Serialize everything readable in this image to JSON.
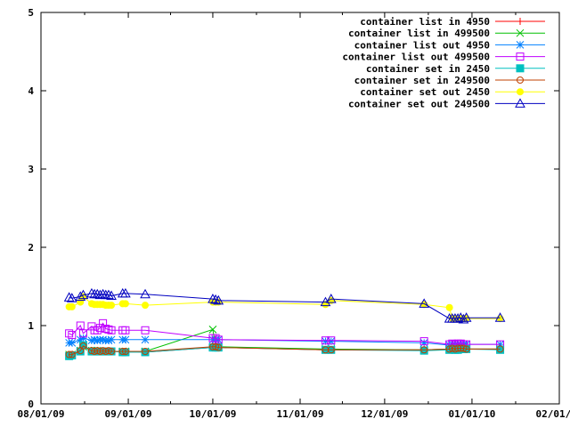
{
  "chart_data": {
    "type": "line",
    "x_type": "date",
    "xlim": [
      "2009-08-01",
      "2010-02-01"
    ],
    "ylim": [
      0,
      5
    ],
    "x_ticks": [
      {
        "date": "2009-08-01",
        "label": "08/01/09"
      },
      {
        "date": "2009-09-01",
        "label": "09/01/09"
      },
      {
        "date": "2009-10-01",
        "label": "10/01/09"
      },
      {
        "date": "2009-11-01",
        "label": "11/01/09"
      },
      {
        "date": "2009-12-01",
        "label": "12/01/09"
      },
      {
        "date": "2010-01-01",
        "label": "01/01/10"
      },
      {
        "date": "2010-02-01",
        "label": "02/01/10"
      }
    ],
    "y_ticks": [
      0,
      1,
      2,
      3,
      4,
      5
    ],
    "legend_position": "top-right",
    "grid": false,
    "x": [
      "2009-08-11",
      "2009-08-12",
      "2009-08-15",
      "2009-08-16",
      "2009-08-19",
      "2009-08-20",
      "2009-08-21",
      "2009-08-22",
      "2009-08-23",
      "2009-08-24",
      "2009-08-25",
      "2009-08-26",
      "2009-08-30",
      "2009-08-31",
      "2009-09-07",
      "2009-10-01",
      "2009-10-02",
      "2009-10-03",
      "2009-11-10",
      "2009-11-12",
      "2009-12-15",
      "2009-12-24",
      "2009-12-25",
      "2009-12-26",
      "2009-12-27",
      "2009-12-28",
      "2009-12-29",
      "2009-12-30",
      "2010-01-11"
    ],
    "series": [
      {
        "name": "container list in 4950",
        "marker": "plus",
        "color": "#ff0000",
        "values": [
          0.62,
          0.62,
          0.68,
          0.74,
          0.68,
          0.67,
          0.67,
          0.67,
          0.67,
          0.67,
          0.67,
          0.67,
          0.67,
          0.67,
          0.66,
          0.72,
          0.72,
          0.72,
          0.69,
          0.69,
          0.69,
          0.7,
          0.7,
          0.7,
          0.71,
          0.71,
          0.7,
          0.7,
          0.7
        ]
      },
      {
        "name": "container list in 499500",
        "marker": "cross",
        "color": "#00c000",
        "values": [
          0.63,
          0.63,
          0.68,
          0.73,
          0.68,
          0.68,
          0.68,
          0.67,
          0.67,
          0.67,
          0.67,
          0.67,
          0.67,
          0.67,
          0.67,
          0.95,
          0.74,
          0.73,
          0.7,
          0.7,
          0.69,
          0.7,
          0.7,
          0.71,
          0.71,
          0.71,
          0.71,
          0.7,
          0.7
        ]
      },
      {
        "name": "container list out 4950",
        "marker": "star",
        "color": "#0080ff",
        "values": [
          0.78,
          0.78,
          0.82,
          0.84,
          0.81,
          0.82,
          0.81,
          0.82,
          0.82,
          0.81,
          0.81,
          0.82,
          0.82,
          0.82,
          0.82,
          0.82,
          0.82,
          0.82,
          0.8,
          0.8,
          0.78,
          0.75,
          0.76,
          0.75,
          0.76,
          0.75,
          0.76,
          0.76,
          0.76
        ]
      },
      {
        "name": "container list out 499500",
        "marker": "square",
        "color": "#c000ff",
        "values": [
          0.9,
          0.88,
          1.0,
          0.9,
          0.99,
          0.94,
          0.94,
          0.97,
          1.03,
          0.96,
          0.95,
          0.94,
          0.94,
          0.94,
          0.94,
          0.84,
          0.84,
          0.82,
          0.81,
          0.81,
          0.8,
          0.76,
          0.77,
          0.76,
          0.77,
          0.77,
          0.76,
          0.76,
          0.76
        ]
      },
      {
        "name": "container set in 2450",
        "marker": "filled-square",
        "color": "#00c0c0",
        "values": [
          0.61,
          0.62,
          0.67,
          0.75,
          0.67,
          0.67,
          0.67,
          0.67,
          0.67,
          0.67,
          0.67,
          0.67,
          0.66,
          0.66,
          0.66,
          0.72,
          0.72,
          0.72,
          0.69,
          0.69,
          0.68,
          0.69,
          0.7,
          0.69,
          0.69,
          0.7,
          0.7,
          0.7,
          0.69
        ]
      },
      {
        "name": "container set in 249500",
        "marker": "circle",
        "color": "#c04000",
        "values": [
          0.63,
          0.63,
          0.68,
          0.74,
          0.68,
          0.67,
          0.68,
          0.67,
          0.68,
          0.67,
          0.68,
          0.67,
          0.67,
          0.67,
          0.67,
          0.73,
          0.73,
          0.72,
          0.69,
          0.69,
          0.69,
          0.7,
          0.71,
          0.7,
          0.71,
          0.71,
          0.71,
          0.7,
          0.7
        ]
      },
      {
        "name": "container set out 2450",
        "marker": "filled-circle",
        "color": "#ffff00",
        "values": [
          1.24,
          1.24,
          1.3,
          1.37,
          1.28,
          1.27,
          1.27,
          1.27,
          1.27,
          1.26,
          1.26,
          1.26,
          1.28,
          1.28,
          1.26,
          1.3,
          1.3,
          1.3,
          1.27,
          1.32,
          1.27,
          1.23,
          1.09,
          1.09,
          1.08,
          1.09,
          1.09,
          1.09,
          1.09
        ]
      },
      {
        "name": "container set out 249500",
        "marker": "triangle",
        "color": "#0000c0",
        "values": [
          1.36,
          1.35,
          1.37,
          1.39,
          1.41,
          1.4,
          1.4,
          1.39,
          1.4,
          1.39,
          1.39,
          1.38,
          1.41,
          1.41,
          1.4,
          1.34,
          1.33,
          1.32,
          1.3,
          1.34,
          1.28,
          1.09,
          1.09,
          1.09,
          1.09,
          1.1,
          1.08,
          1.1,
          1.1
        ]
      }
    ]
  }
}
